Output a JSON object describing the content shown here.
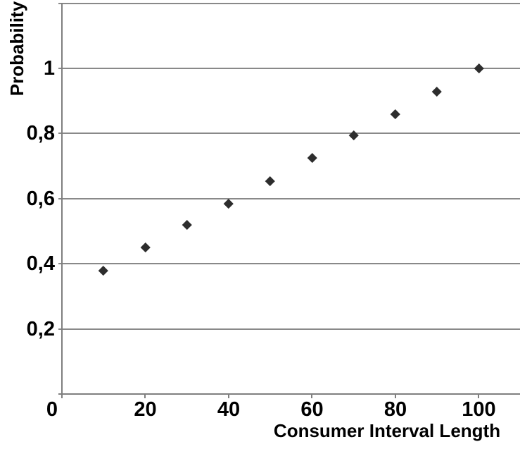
{
  "chart_data": {
    "type": "scatter",
    "title": "",
    "xlabel": "Consumer Interval Length",
    "ylabel": "Probability",
    "x": [
      10,
      20,
      30,
      40,
      50,
      60,
      70,
      80,
      90,
      100
    ],
    "y": [
      0.38,
      0.45,
      0.52,
      0.585,
      0.655,
      0.725,
      0.795,
      0.86,
      0.93,
      1.0
    ],
    "xlim": [
      0,
      110
    ],
    "ylim": [
      0,
      1.2
    ],
    "x_tick_values": [
      0,
      20,
      40,
      60,
      80,
      100
    ],
    "x_tick_labels": [
      "0",
      "20",
      "40",
      "60",
      "80",
      "100"
    ],
    "y_tick_values": [
      0.2,
      0.4,
      0.6,
      0.8,
      1.0
    ],
    "y_tick_labels": [
      "0,2",
      "0,4",
      "0,6",
      "0,8",
      "1"
    ],
    "y_gridline_values": [
      0.2,
      0.4,
      0.6,
      0.8,
      1.0,
      1.2
    ],
    "grid": "horizontal-only",
    "legend": "none",
    "marker_shape": "diamond",
    "decimal_separator": ","
  },
  "colors": {
    "marker": "#2d2d2d",
    "gridline": "#898989",
    "axis": "#7f7f7f",
    "text": "#000000",
    "background": "#ffffff"
  }
}
